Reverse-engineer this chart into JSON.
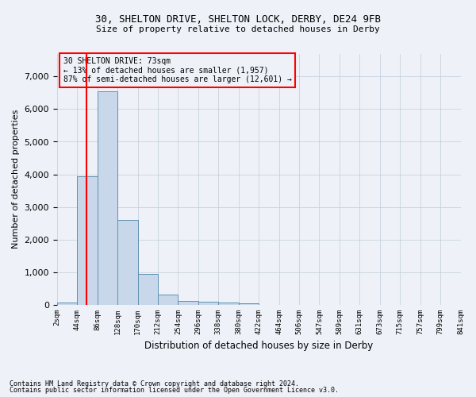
{
  "title1": "30, SHELTON DRIVE, SHELTON LOCK, DERBY, DE24 9FB",
  "title2": "Size of property relative to detached houses in Derby",
  "xlabel": "Distribution of detached houses by size in Derby",
  "ylabel": "Number of detached properties",
  "bar_color": "#c8d8ea",
  "bar_edge_color": "#6090b0",
  "background_color": "#eef2f8",
  "bin_labels": [
    "2sqm",
    "44sqm",
    "86sqm",
    "128sqm",
    "170sqm",
    "212sqm",
    "254sqm",
    "296sqm",
    "338sqm",
    "380sqm",
    "422sqm",
    "464sqm",
    "506sqm",
    "547sqm",
    "589sqm",
    "631sqm",
    "673sqm",
    "715sqm",
    "757sqm",
    "799sqm",
    "841sqm"
  ],
  "bar_heights": [
    80,
    3950,
    6550,
    2600,
    950,
    310,
    115,
    105,
    80,
    60,
    0,
    0,
    0,
    0,
    0,
    0,
    0,
    0,
    0,
    0
  ],
  "ylim": [
    0,
    7700
  ],
  "yticks": [
    0,
    1000,
    2000,
    3000,
    4000,
    5000,
    6000,
    7000
  ],
  "annotation_title": "30 SHELTON DRIVE: 73sqm",
  "annotation_line1": "← 13% of detached houses are smaller (1,957)",
  "annotation_line2": "87% of semi-detached houses are larger (12,601) →",
  "property_line_x": 1.45,
  "footer1": "Contains HM Land Registry data © Crown copyright and database right 2024.",
  "footer2": "Contains public sector information licensed under the Open Government Licence v3.0.",
  "grid_color": "#c0ccd8",
  "grid_alpha": 1.0
}
